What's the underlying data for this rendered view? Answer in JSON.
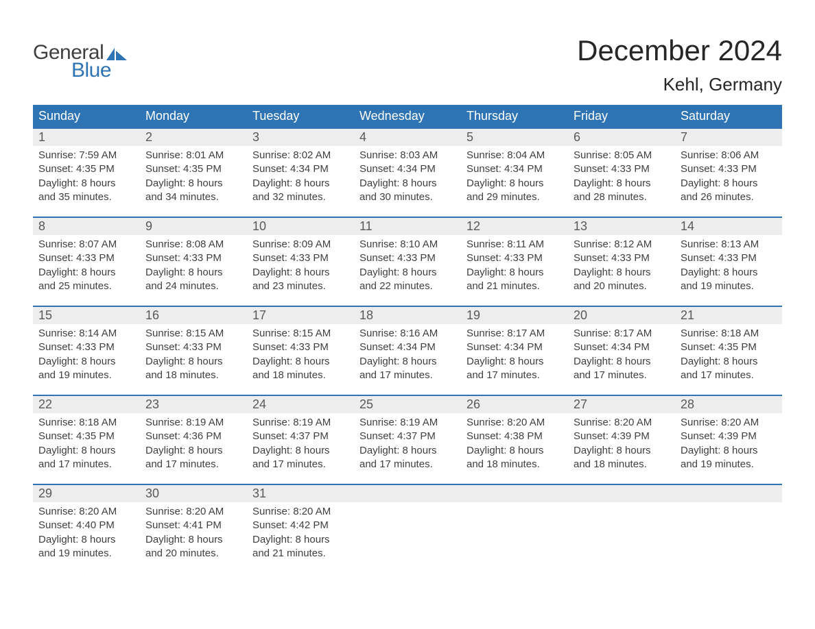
{
  "brand": {
    "top": "General",
    "bottom": "Blue"
  },
  "title": "December 2024",
  "location": "Kehl, Germany",
  "colors": {
    "accent": "#2e74b5",
    "header_text": "#ffffff",
    "daynum_bg": "#ededed",
    "daynum_text": "#595959",
    "body_text": "#404040",
    "background": "#ffffff"
  },
  "typography": {
    "title_fontsize": 42,
    "location_fontsize": 26,
    "weekday_fontsize": 18,
    "daynum_fontsize": 18,
    "body_fontsize": 15
  },
  "layout": {
    "columns": 7,
    "day_labels": [
      "Sunday",
      "Monday",
      "Tuesday",
      "Wednesday",
      "Thursday",
      "Friday",
      "Saturday"
    ]
  },
  "days": [
    {
      "n": 1,
      "sunrise": "7:59 AM",
      "sunset": "4:35 PM",
      "dl": "8 hours and 35 minutes."
    },
    {
      "n": 2,
      "sunrise": "8:01 AM",
      "sunset": "4:35 PM",
      "dl": "8 hours and 34 minutes."
    },
    {
      "n": 3,
      "sunrise": "8:02 AM",
      "sunset": "4:34 PM",
      "dl": "8 hours and 32 minutes."
    },
    {
      "n": 4,
      "sunrise": "8:03 AM",
      "sunset": "4:34 PM",
      "dl": "8 hours and 30 minutes."
    },
    {
      "n": 5,
      "sunrise": "8:04 AM",
      "sunset": "4:34 PM",
      "dl": "8 hours and 29 minutes."
    },
    {
      "n": 6,
      "sunrise": "8:05 AM",
      "sunset": "4:33 PM",
      "dl": "8 hours and 28 minutes."
    },
    {
      "n": 7,
      "sunrise": "8:06 AM",
      "sunset": "4:33 PM",
      "dl": "8 hours and 26 minutes."
    },
    {
      "n": 8,
      "sunrise": "8:07 AM",
      "sunset": "4:33 PM",
      "dl": "8 hours and 25 minutes."
    },
    {
      "n": 9,
      "sunrise": "8:08 AM",
      "sunset": "4:33 PM",
      "dl": "8 hours and 24 minutes."
    },
    {
      "n": 10,
      "sunrise": "8:09 AM",
      "sunset": "4:33 PM",
      "dl": "8 hours and 23 minutes."
    },
    {
      "n": 11,
      "sunrise": "8:10 AM",
      "sunset": "4:33 PM",
      "dl": "8 hours and 22 minutes."
    },
    {
      "n": 12,
      "sunrise": "8:11 AM",
      "sunset": "4:33 PM",
      "dl": "8 hours and 21 minutes."
    },
    {
      "n": 13,
      "sunrise": "8:12 AM",
      "sunset": "4:33 PM",
      "dl": "8 hours and 20 minutes."
    },
    {
      "n": 14,
      "sunrise": "8:13 AM",
      "sunset": "4:33 PM",
      "dl": "8 hours and 19 minutes."
    },
    {
      "n": 15,
      "sunrise": "8:14 AM",
      "sunset": "4:33 PM",
      "dl": "8 hours and 19 minutes."
    },
    {
      "n": 16,
      "sunrise": "8:15 AM",
      "sunset": "4:33 PM",
      "dl": "8 hours and 18 minutes."
    },
    {
      "n": 17,
      "sunrise": "8:15 AM",
      "sunset": "4:33 PM",
      "dl": "8 hours and 18 minutes."
    },
    {
      "n": 18,
      "sunrise": "8:16 AM",
      "sunset": "4:34 PM",
      "dl": "8 hours and 17 minutes."
    },
    {
      "n": 19,
      "sunrise": "8:17 AM",
      "sunset": "4:34 PM",
      "dl": "8 hours and 17 minutes."
    },
    {
      "n": 20,
      "sunrise": "8:17 AM",
      "sunset": "4:34 PM",
      "dl": "8 hours and 17 minutes."
    },
    {
      "n": 21,
      "sunrise": "8:18 AM",
      "sunset": "4:35 PM",
      "dl": "8 hours and 17 minutes."
    },
    {
      "n": 22,
      "sunrise": "8:18 AM",
      "sunset": "4:35 PM",
      "dl": "8 hours and 17 minutes."
    },
    {
      "n": 23,
      "sunrise": "8:19 AM",
      "sunset": "4:36 PM",
      "dl": "8 hours and 17 minutes."
    },
    {
      "n": 24,
      "sunrise": "8:19 AM",
      "sunset": "4:37 PM",
      "dl": "8 hours and 17 minutes."
    },
    {
      "n": 25,
      "sunrise": "8:19 AM",
      "sunset": "4:37 PM",
      "dl": "8 hours and 17 minutes."
    },
    {
      "n": 26,
      "sunrise": "8:20 AM",
      "sunset": "4:38 PM",
      "dl": "8 hours and 18 minutes."
    },
    {
      "n": 27,
      "sunrise": "8:20 AM",
      "sunset": "4:39 PM",
      "dl": "8 hours and 18 minutes."
    },
    {
      "n": 28,
      "sunrise": "8:20 AM",
      "sunset": "4:39 PM",
      "dl": "8 hours and 19 minutes."
    },
    {
      "n": 29,
      "sunrise": "8:20 AM",
      "sunset": "4:40 PM",
      "dl": "8 hours and 19 minutes."
    },
    {
      "n": 30,
      "sunrise": "8:20 AM",
      "sunset": "4:41 PM",
      "dl": "8 hours and 20 minutes."
    },
    {
      "n": 31,
      "sunrise": "8:20 AM",
      "sunset": "4:42 PM",
      "dl": "8 hours and 21 minutes."
    }
  ],
  "labels": {
    "sunrise_prefix": "Sunrise: ",
    "sunset_prefix": "Sunset: ",
    "daylight_prefix": "Daylight: "
  },
  "first_day_column": 0,
  "weeks": 5
}
